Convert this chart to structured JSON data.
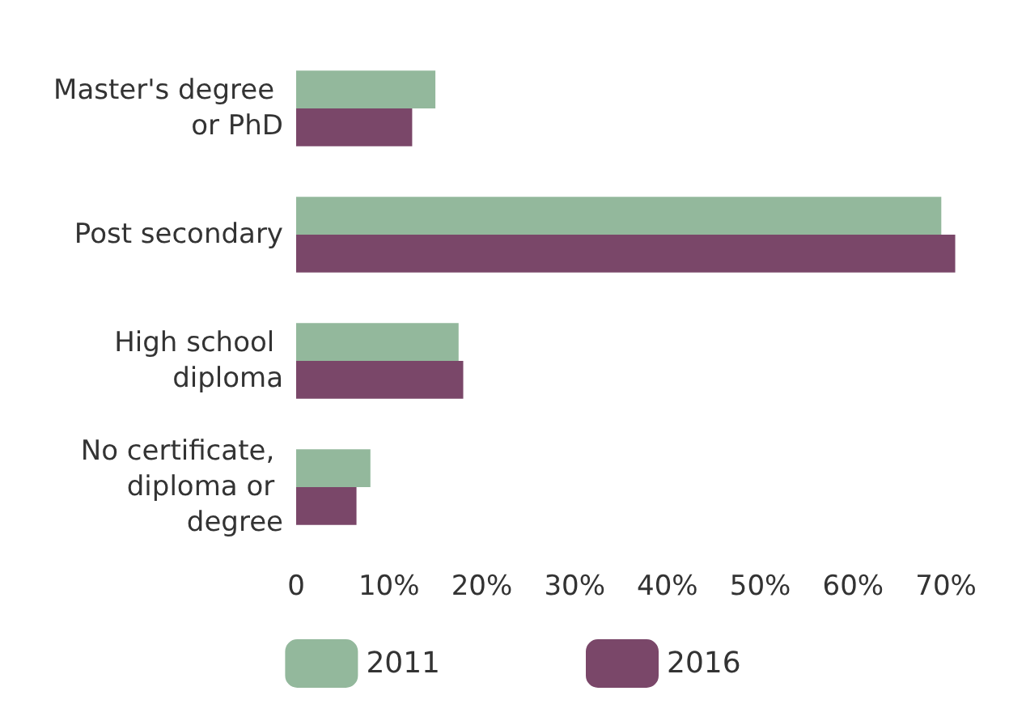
{
  "chart_data": {
    "type": "bar",
    "orientation": "horizontal",
    "categories": [
      "Master's degree or PhD",
      "Post secondary",
      "High school diploma",
      "No certificate, diploma or degree"
    ],
    "series": [
      {
        "name": "2011",
        "color": "#93b89c",
        "values": [
          15,
          69.5,
          17.5,
          8
        ]
      },
      {
        "name": "2016",
        "color": "#7a4769",
        "values": [
          12.5,
          71,
          18,
          6.5
        ]
      }
    ],
    "xlim": [
      0,
      72
    ],
    "xticks": [
      0,
      {
        "value": 10,
        "label": "10%"
      },
      {
        "value": 20,
        "label": "20%"
      },
      {
        "value": 30,
        "label": "30%"
      },
      {
        "value": 40,
        "label": "40%"
      },
      {
        "value": 50,
        "label": "50%"
      },
      {
        "value": 60,
        "label": "60%"
      },
      {
        "value": 70,
        "label": "70%"
      }
    ],
    "grid": false,
    "legend": "bottom"
  }
}
